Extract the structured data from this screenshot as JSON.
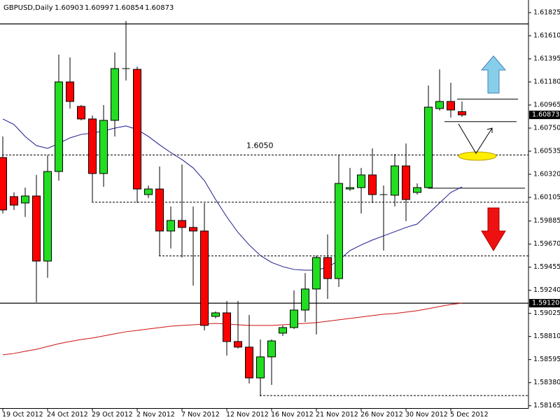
{
  "chart_data": {
    "type": "candlestick",
    "title": "GBPUSD,Daily",
    "categories": [
      "19 Oct 2012",
      null,
      null,
      null,
      "24 Oct 2012",
      null,
      null,
      null,
      "29 Oct 2012",
      null,
      null,
      null,
      "2 Nov 2012",
      null,
      null,
      null,
      "7 Nov 2012",
      null,
      null,
      null,
      "12 Nov 2012",
      null,
      null,
      null,
      "16 Nov 2012",
      null,
      null,
      null,
      "21 Nov 2012",
      null,
      null,
      null,
      "26 Nov 2012",
      null,
      null,
      null,
      "30 Nov 2012",
      null,
      null,
      null,
      "5 Dec 2012",
      null
    ],
    "open": [
      1.60476,
      1.60112,
      1.60053,
      1.60118,
      1.59512,
      1.60346,
      1.6118,
      1.60952,
      1.60835,
      1.60327,
      1.60822,
      1.61304,
      1.61297,
      1.60131,
      1.60183,
      1.59792,
      1.5989,
      1.59825,
      1.59792,
      1.58997,
      1.5903,
      1.58763,
      1.58711,
      1.58424,
      1.5862,
      1.58841,
      1.58893,
      1.59056,
      1.59252,
      1.59545,
      1.59349,
      1.60183,
      1.60196,
      1.60314,
      1.60131,
      1.60125,
      1.60398,
      1.60151,
      1.60196,
      1.60932,
      1.60998,
      1.60903
    ],
    "high": [
      1.60672,
      1.60151,
      1.60196,
      1.60314,
      1.60496,
      1.61434,
      1.61408,
      1.60965,
      1.60867,
      1.60965,
      1.61454,
      1.61747,
      1.61323,
      1.60216,
      1.60392,
      1.6002,
      1.60411,
      1.6002,
      1.60053,
      1.59043,
      1.59141,
      1.59141,
      1.59011,
      1.58782,
      1.58782,
      1.58913,
      1.59239,
      1.59401,
      1.59564,
      1.5976,
      1.60496,
      1.60379,
      1.60379,
      1.60561,
      1.60216,
      1.60509,
      1.60607,
      1.60235,
      1.61147,
      1.61297,
      1.61173,
      1.60997
    ],
    "low": [
      1.59955,
      1.59988,
      1.59923,
      1.59128,
      1.59356,
      1.60261,
      1.60932,
      1.60822,
      1.60066,
      1.60203,
      1.60672,
      1.61193,
      1.60053,
      1.60099,
      1.59564,
      1.59629,
      1.59545,
      1.59284,
      1.58867,
      1.58978,
      1.58633,
      1.58698,
      1.58372,
      1.58255,
      1.58359,
      1.58815,
      1.5888,
      1.58945,
      1.58828,
      1.5916,
      1.59271,
      1.60164,
      1.59955,
      1.60053,
      1.5961,
      1.6002,
      1.59884,
      1.60131,
      1.60183,
      1.60913,
      1.60848,
      1.60854
    ],
    "close": [
      1.59988,
      1.60033,
      1.60118,
      1.59512,
      1.60346,
      1.6118,
      1.60998,
      1.60835,
      1.60327,
      1.60822,
      1.61304,
      1.61297,
      1.60183,
      1.60183,
      1.59792,
      1.5989,
      1.59825,
      1.59792,
      1.58913,
      1.5903,
      1.58763,
      1.58711,
      1.58424,
      1.5862,
      1.58769,
      1.58893,
      1.59056,
      1.59252,
      1.59545,
      1.59349,
      1.60235,
      1.60196,
      1.60314,
      1.60131,
      1.60125,
      1.60398,
      1.60085,
      1.60196,
      1.60945,
      1.60998,
      1.60919,
      1.60873
    ],
    "up_color": "#22dd22",
    "down_color": "#ff0000",
    "moving_averages": [
      {
        "color": "#1a1a8c",
        "values": [
          1.60835,
          1.60783,
          1.60672,
          1.60587,
          1.60561,
          1.60607,
          1.60659,
          1.60691,
          1.60704,
          1.60724,
          1.6075,
          1.6077,
          1.60737,
          1.60672,
          1.60594,
          1.60522,
          1.60457,
          1.60379,
          1.60261,
          1.60085,
          1.59923,
          1.59779,
          1.59662,
          1.59564,
          1.59499,
          1.5946,
          1.59434,
          1.59427,
          1.59427,
          1.59454,
          1.59519,
          1.5961,
          1.59662,
          1.59708,
          1.59747,
          1.59786,
          1.59825,
          1.59857,
          1.59955,
          1.60053,
          1.60151,
          1.60203
        ]
      },
      {
        "color": "#cc1111",
        "values": [
          1.58639,
          1.58652,
          1.58672,
          1.58691,
          1.58717,
          1.58743,
          1.58763,
          1.58782,
          1.58796,
          1.58815,
          1.58835,
          1.58854,
          1.58867,
          1.5888,
          1.58893,
          1.58906,
          1.58913,
          1.58919,
          1.58926,
          1.58932,
          1.58926,
          1.58919,
          1.58913,
          1.58913,
          1.58913,
          1.58919,
          1.58926,
          1.58932,
          1.58939,
          1.58952,
          1.58965,
          1.58978,
          1.58991,
          1.59004,
          1.59017,
          1.59024,
          1.59037,
          1.5905,
          1.59069,
          1.59089,
          1.59108,
          1.59121
        ]
      }
    ],
    "levels": [
      {
        "value": 1.6172,
        "style": "solid"
      },
      {
        "value": 1.5912,
        "label": "1.59120",
        "style": "solid"
      },
      {
        "value": 1.605,
        "label": "1.6050",
        "style": "dashed"
      },
      {
        "value": 1.6006,
        "style": "dashed"
      },
      {
        "value": 1.5956,
        "style": "dashed"
      },
      {
        "value": 1.5826,
        "style": "dashed"
      },
      {
        "value": 1.6102,
        "style": "solid"
      },
      {
        "value": 1.6081,
        "style": "solid"
      },
      {
        "value": 1.6019,
        "style": "solid"
      }
    ],
    "ylim": [
      1.5814,
      1.6191
    ],
    "yticks": [
      1.61825,
      {
        "value": 1.6161,
        "label": "1.61610"
      },
      1.61395,
      {
        "value": 1.6118,
        "label": "1.61180"
      },
      1.60965,
      {
        "value": 1.6075,
        "label": "1.60750"
      },
      1.60535,
      {
        "value": 1.6032,
        "label": "1.60320"
      },
      1.60105,
      1.59885,
      {
        "value": 1.5967,
        "label": "1.59670"
      },
      1.59455,
      {
        "value": 1.5924,
        "label": "1.59240"
      },
      1.59025,
      {
        "value": 1.5881,
        "label": "1.58810"
      },
      1.58595,
      {
        "value": 1.5838,
        "label": "1.58380"
      },
      1.58165
    ]
  }
}
